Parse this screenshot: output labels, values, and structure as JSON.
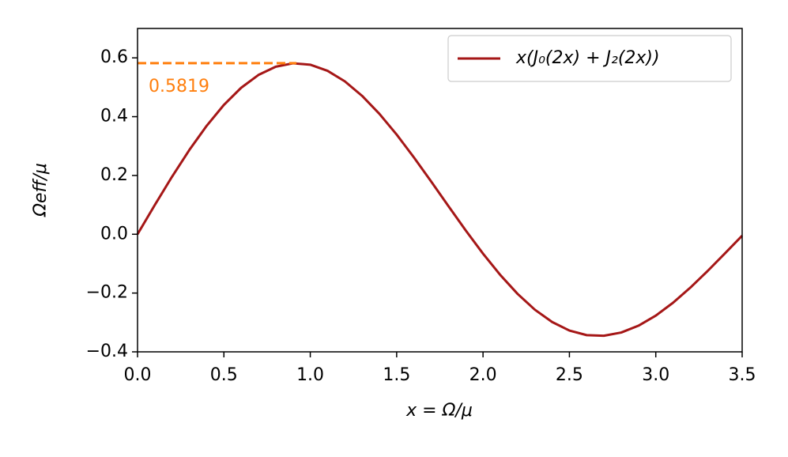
{
  "chart_data": {
    "type": "line",
    "xlabel": "x = Ω/μ",
    "ylabel": "Ωeff/μ",
    "x": [
      0,
      0.1,
      0.2,
      0.3,
      0.4,
      0.5,
      0.6,
      0.7,
      0.8,
      0.9,
      1.0,
      1.1,
      1.2,
      1.3,
      1.4,
      1.5,
      1.6,
      1.7,
      1.8,
      1.9,
      2.0,
      2.1,
      2.2,
      2.3,
      2.4,
      2.5,
      2.6,
      2.7,
      2.8,
      2.9,
      3.0,
      3.1,
      3.2,
      3.3,
      3.4,
      3.5
    ],
    "series": [
      {
        "name": "x(J₀(2x) + J₂(2x))",
        "color": "#a51717",
        "values": [
          0,
          0.0995,
          0.196,
          0.2867,
          0.3688,
          0.4401,
          0.4983,
          0.5419,
          0.5699,
          0.5815,
          0.5767,
          0.556,
          0.5202,
          0.4708,
          0.4097,
          0.3391,
          0.2613,
          0.1792,
          0.0955,
          0.0128,
          -0.066,
          -0.1386,
          -0.2028,
          -0.2566,
          -0.2985,
          -0.3276,
          -0.3432,
          -0.3453,
          -0.3343,
          -0.311,
          -0.2767,
          -0.2329,
          -0.1816,
          -0.125,
          -0.0652,
          -0.0047
        ]
      }
    ],
    "reference_line": {
      "value": 0.5819,
      "label": "0.5819",
      "x": [
        0,
        0.92
      ],
      "color": "#ff7f0e",
      "style": "dashed"
    },
    "xlim": [
      0,
      3.5
    ],
    "ylim": [
      -0.4,
      0.7
    ],
    "xticks": [
      {
        "value": 0,
        "label": "0.0"
      },
      0.5,
      {
        "value": 1,
        "label": "1.0"
      },
      1.5,
      {
        "value": 2,
        "label": "2.0"
      },
      2.5,
      {
        "value": 3,
        "label": "3.0"
      },
      3.5
    ],
    "yticks": [
      {
        "value": -0.4,
        "label": "−0.4"
      },
      {
        "value": -0.2,
        "label": "−0.2"
      },
      {
        "value": 0,
        "label": "0.0"
      },
      0.2,
      0.4,
      0.6
    ],
    "legend": "upper right",
    "grid": false
  }
}
